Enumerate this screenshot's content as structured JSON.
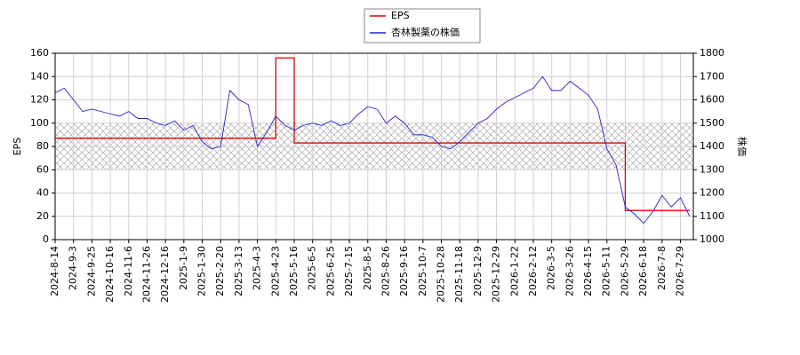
{
  "chart_data": {
    "type": "line",
    "x": [
      "2024-8-14",
      null,
      "2024-9-3",
      null,
      "2024-9-25",
      null,
      "2024-10-16",
      null,
      "2024-11-6",
      null,
      "2024-11-26",
      null,
      "2024-12-16",
      null,
      "2025-1-9",
      null,
      "2025-1-30",
      null,
      "2025-2-20",
      null,
      "2025-3-13",
      null,
      "2025-4-3",
      null,
      "2025-4-23",
      null,
      "2025-5-16",
      null,
      "2025-6-5",
      null,
      "2025-6-25",
      null,
      "2025-7-15",
      null,
      "2025-8-5",
      null,
      "2025-8-26",
      null,
      "2025-9-16",
      null,
      "2025-10-7",
      null,
      "2025-10-28",
      null,
      "2025-11-18",
      null,
      "2025-12-9",
      null,
      "2025-12-29",
      null,
      "2026-1-22",
      null,
      "2026-2-12",
      null,
      "2026-3-5",
      null,
      "2026-3-26",
      null,
      "2026-4-15",
      null,
      "2026-5-11",
      null,
      "2026-5-29",
      null,
      "2026-6-18",
      null,
      "2026-7-8",
      null,
      "2026-7-29",
      null
    ],
    "series": [
      {
        "name": "EPS",
        "color": "#dd0000",
        "drawstyle": "steps-post",
        "values": [
          87,
          87,
          87,
          87,
          87,
          87,
          87,
          87,
          87,
          87,
          87,
          87,
          87,
          87,
          87,
          87,
          87,
          87,
          87,
          87,
          87,
          87,
          87,
          87,
          156,
          156,
          83,
          83,
          83,
          83,
          83,
          83,
          83,
          83,
          83,
          83,
          83,
          83,
          83,
          83,
          83,
          83,
          83,
          83,
          83,
          83,
          83,
          83,
          83,
          83,
          83,
          83,
          83,
          83,
          83,
          83,
          83,
          83,
          83,
          83,
          83,
          83,
          25,
          25,
          25,
          25,
          25,
          25,
          25,
          25
        ]
      },
      {
        "name": "杏林製薬の株価",
        "color": "#2222cc",
        "axis": "y2",
        "values": [
          1630,
          1650,
          1600,
          1550,
          1560,
          1550,
          1540,
          1530,
          1550,
          1520,
          1520,
          1500,
          1490,
          1510,
          1470,
          1490,
          1420,
          1390,
          1400,
          1640,
          1600,
          1580,
          1400,
          1460,
          1530,
          1490,
          1470,
          1490,
          1500,
          1490,
          1510,
          1490,
          1500,
          1540,
          1570,
          1560,
          1500,
          1530,
          1500,
          1450,
          1450,
          1440,
          1400,
          1390,
          1420,
          1460,
          1500,
          1520,
          1560,
          1590,
          1610,
          1630,
          1650,
          1700,
          1640,
          1640,
          1680,
          1650,
          1620,
          1560,
          1390,
          1320,
          1140,
          1110,
          1070,
          1120,
          1190,
          1140,
          1180,
          1100
        ]
      }
    ],
    "ylabel": "EPS",
    "y2label": "株価",
    "ylim": [
      0,
      160
    ],
    "yticks": [
      0,
      20,
      40,
      60,
      80,
      100,
      120,
      140,
      160
    ],
    "y2lim": [
      1000,
      1800
    ],
    "y2ticks": [
      1000,
      1100,
      1200,
      1300,
      1400,
      1500,
      1600,
      1700,
      1800
    ],
    "shaded_range": [
      60,
      100
    ],
    "grid": true,
    "legend": "upper center"
  }
}
